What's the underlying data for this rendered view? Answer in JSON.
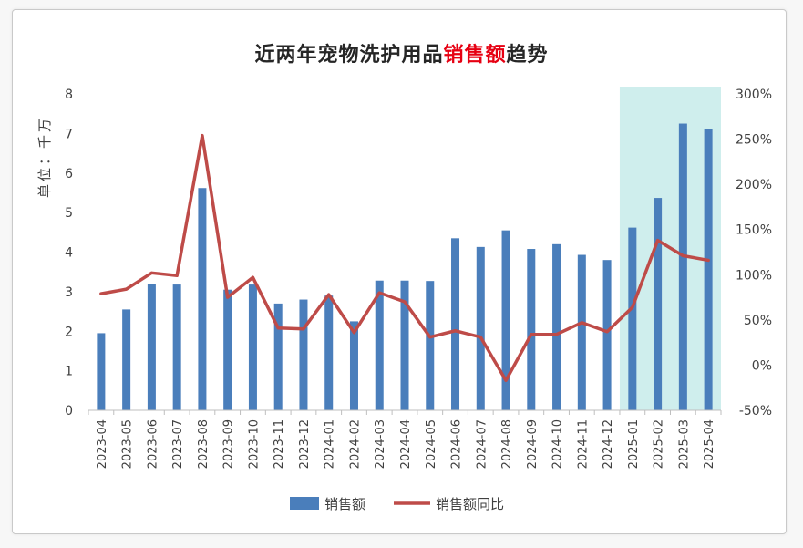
{
  "title": {
    "prefix": "近两年宠物洗护用品",
    "highlight": "销售额",
    "suffix": "趋势",
    "highlight_color": "#e60012"
  },
  "colors": {
    "bar": "#4a7ebb",
    "line": "#be4b48",
    "highlight_band": "#cfeeed"
  },
  "chart_data": {
    "type": "bar+line",
    "categories": [
      "2023-04",
      "2023-05",
      "2023-06",
      "2023-07",
      "2023-08",
      "2023-09",
      "2023-10",
      "2023-11",
      "2023-12",
      "2024-01",
      "2024-02",
      "2024-03",
      "2024-04",
      "2024-05",
      "2024-06",
      "2024-07",
      "2024-08",
      "2024-09",
      "2024-10",
      "2024-11",
      "2024-12",
      "2025-01",
      "2025-02",
      "2025-03",
      "2025-04"
    ],
    "series": [
      {
        "name": "销售额",
        "type": "bar",
        "axis": "left",
        "values": [
          1.95,
          2.55,
          3.2,
          3.18,
          5.62,
          3.05,
          3.18,
          2.7,
          2.8,
          2.9,
          2.25,
          3.28,
          3.28,
          3.27,
          4.35,
          4.13,
          4.55,
          4.08,
          4.2,
          3.93,
          3.8,
          4.62,
          5.37,
          7.25,
          7.12
        ]
      },
      {
        "name": "销售额同比",
        "type": "line",
        "axis": "right",
        "values": [
          79,
          84,
          102,
          99,
          254,
          75,
          97,
          41,
          40,
          78,
          36,
          80,
          70,
          31,
          38,
          31,
          -17,
          34,
          34,
          47,
          37,
          64,
          138,
          121,
          116
        ]
      }
    ],
    "y_left": {
      "label": "单位：千万",
      "min": 0,
      "max": 8,
      "ticks": [
        "0",
        "1",
        "2",
        "3",
        "4",
        "5",
        "6",
        "7",
        "8"
      ]
    },
    "y_right": {
      "min": -50,
      "max": 300,
      "ticks": [
        "-50%",
        "0%",
        "50%",
        "100%",
        "150%",
        "200%",
        "250%",
        "300%"
      ]
    },
    "highlight_range": [
      "2025-01",
      "2025-04"
    ],
    "legend": {
      "position": "bottom",
      "items": [
        "销售额",
        "销售额同比"
      ]
    },
    "grid": false
  }
}
